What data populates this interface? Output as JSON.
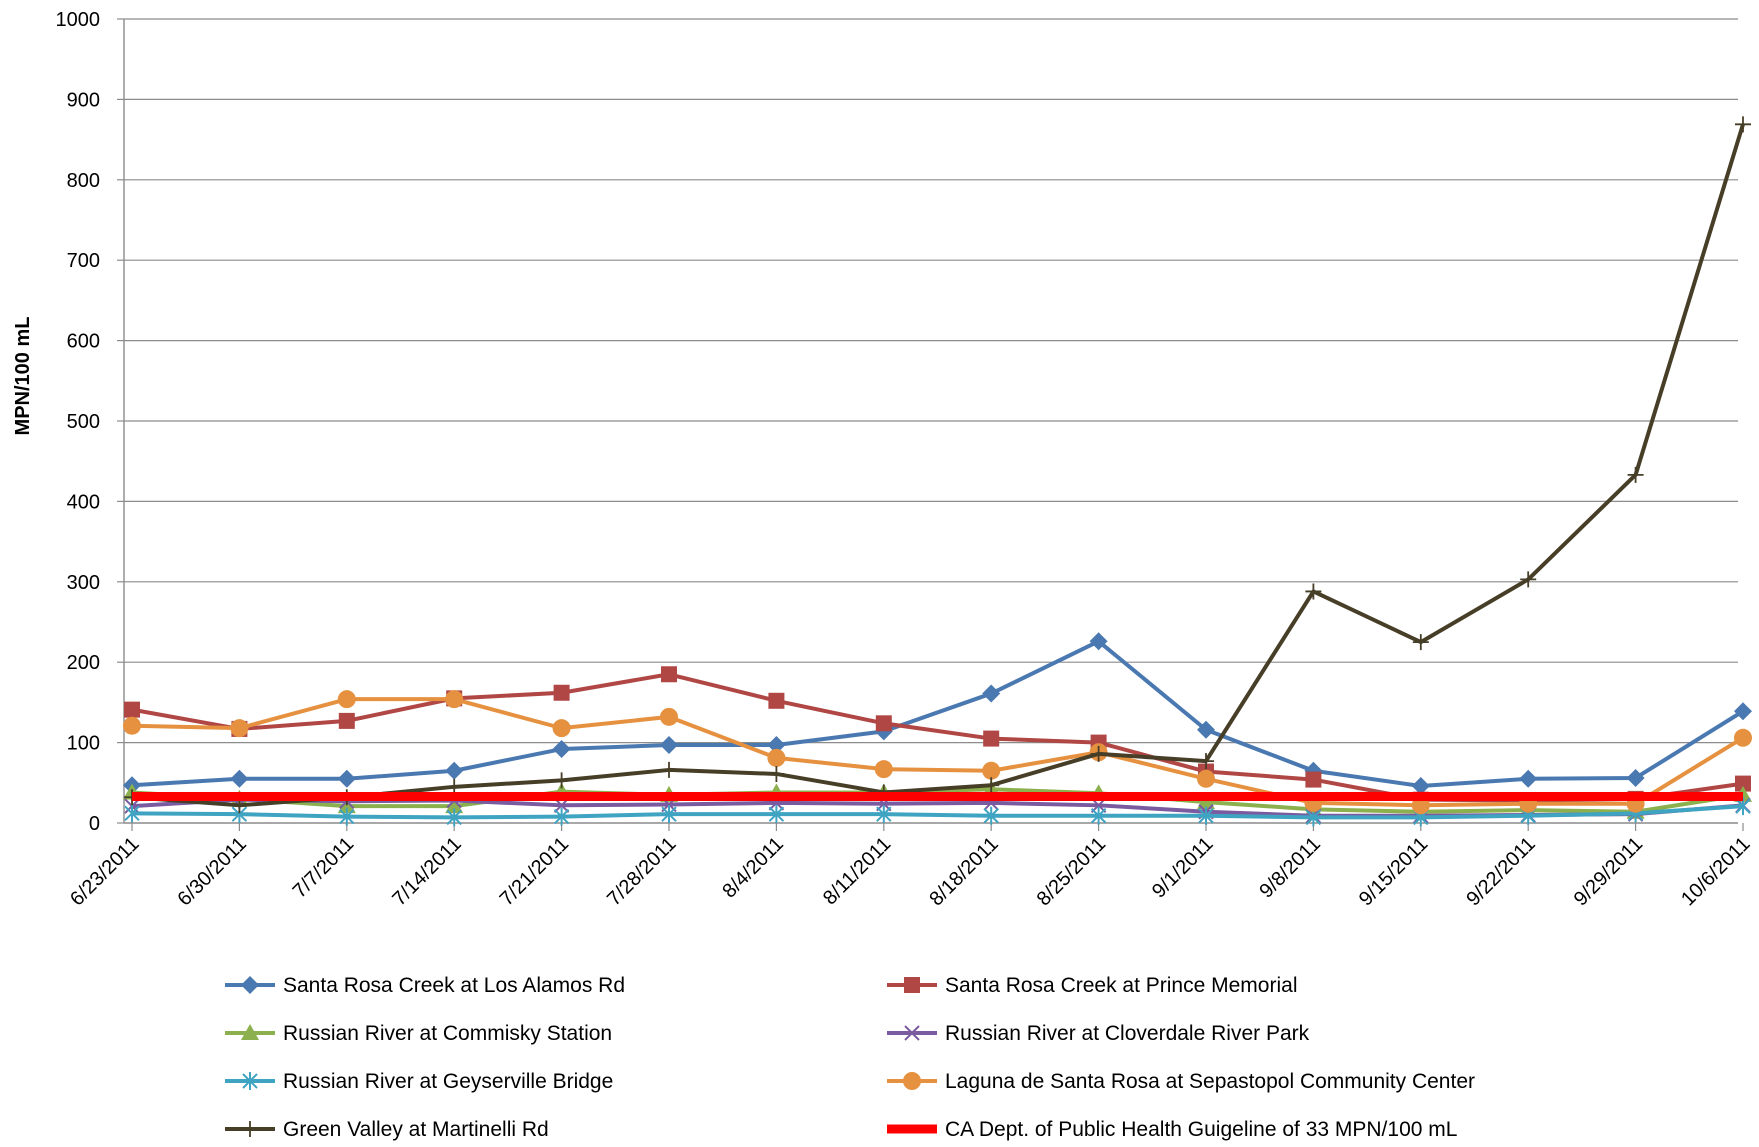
{
  "chart_data": {
    "type": "line",
    "title": "",
    "xlabel": "",
    "ylabel": "MPN/100 mL",
    "ylim": [
      0,
      1000
    ],
    "yticks": [
      0,
      100,
      200,
      300,
      400,
      500,
      600,
      700,
      800,
      900,
      1000
    ],
    "grid": "horizontal",
    "legend_position": "bottom",
    "categories": [
      "6/23/2011",
      "6/30/2011",
      "7/7/2011",
      "7/14/2011",
      "7/21/2011",
      "7/28/2011",
      "8/4/2011",
      "8/11/2011",
      "8/18/2011",
      "8/25/2011",
      "9/1/2011",
      "9/8/2011",
      "9/15/2011",
      "9/22/2011",
      "9/29/2011",
      "10/6/2011"
    ],
    "series": [
      {
        "name": "Santa Rosa Creek at Los Alamos Rd",
        "color": "#4a78b0",
        "marker": "diamond",
        "values": [
          47,
          55,
          55,
          65,
          92,
          97,
          97,
          114,
          161,
          226,
          116,
          65,
          46,
          55,
          56,
          139
        ]
      },
      {
        "name": "Santa Rosa Creek at Prince Memorial",
        "color": "#b04745",
        "marker": "square",
        "values": [
          141,
          117,
          127,
          155,
          162,
          185,
          152,
          124,
          105,
          100,
          64,
          54,
          29,
          28,
          30,
          49
        ]
      },
      {
        "name": "Russian River at Commisky Station",
        "color": "#8cb04d",
        "marker": "triangle",
        "values": [
          38,
          30,
          21,
          21,
          39,
          35,
          38,
          38,
          42,
          37,
          26,
          17,
          14,
          16,
          14,
          35
        ]
      },
      {
        "name": "Russian River at Cloverdale River Park",
        "color": "#7a5ba0",
        "marker": "x",
        "values": [
          21,
          29,
          27,
          28,
          22,
          23,
          25,
          24,
          25,
          22,
          14,
          9,
          9,
          10,
          11,
          22
        ]
      },
      {
        "name": "Russian River at Geyserville Bridge",
        "color": "#3fa3c2",
        "marker": "star",
        "values": [
          12,
          11,
          8,
          7,
          8,
          11,
          11,
          11,
          9,
          9,
          9,
          7,
          7,
          9,
          12,
          21
        ]
      },
      {
        "name": "Laguna de Santa Rosa at Sepastopol Community Center",
        "color": "#e69140",
        "marker": "circle",
        "values": [
          121,
          118,
          154,
          154,
          118,
          132,
          81,
          67,
          65,
          88,
          55,
          25,
          22,
          24,
          24,
          106
        ]
      },
      {
        "name": "Green Valley at Martinelli Rd",
        "color": "#473e27",
        "marker": "plus",
        "values": [
          32,
          22,
          32,
          45,
          53,
          66,
          61,
          38,
          47,
          86,
          77,
          288,
          225,
          303,
          433,
          869
        ]
      },
      {
        "name": "CA Dept. of Public Health Guigeline of 33 MPN/100 mL",
        "color": "#ff0000",
        "marker": "none",
        "values": [
          33,
          33,
          33,
          33,
          33,
          33,
          33,
          33,
          33,
          33,
          33,
          33,
          33,
          33,
          33,
          33
        ]
      }
    ]
  }
}
